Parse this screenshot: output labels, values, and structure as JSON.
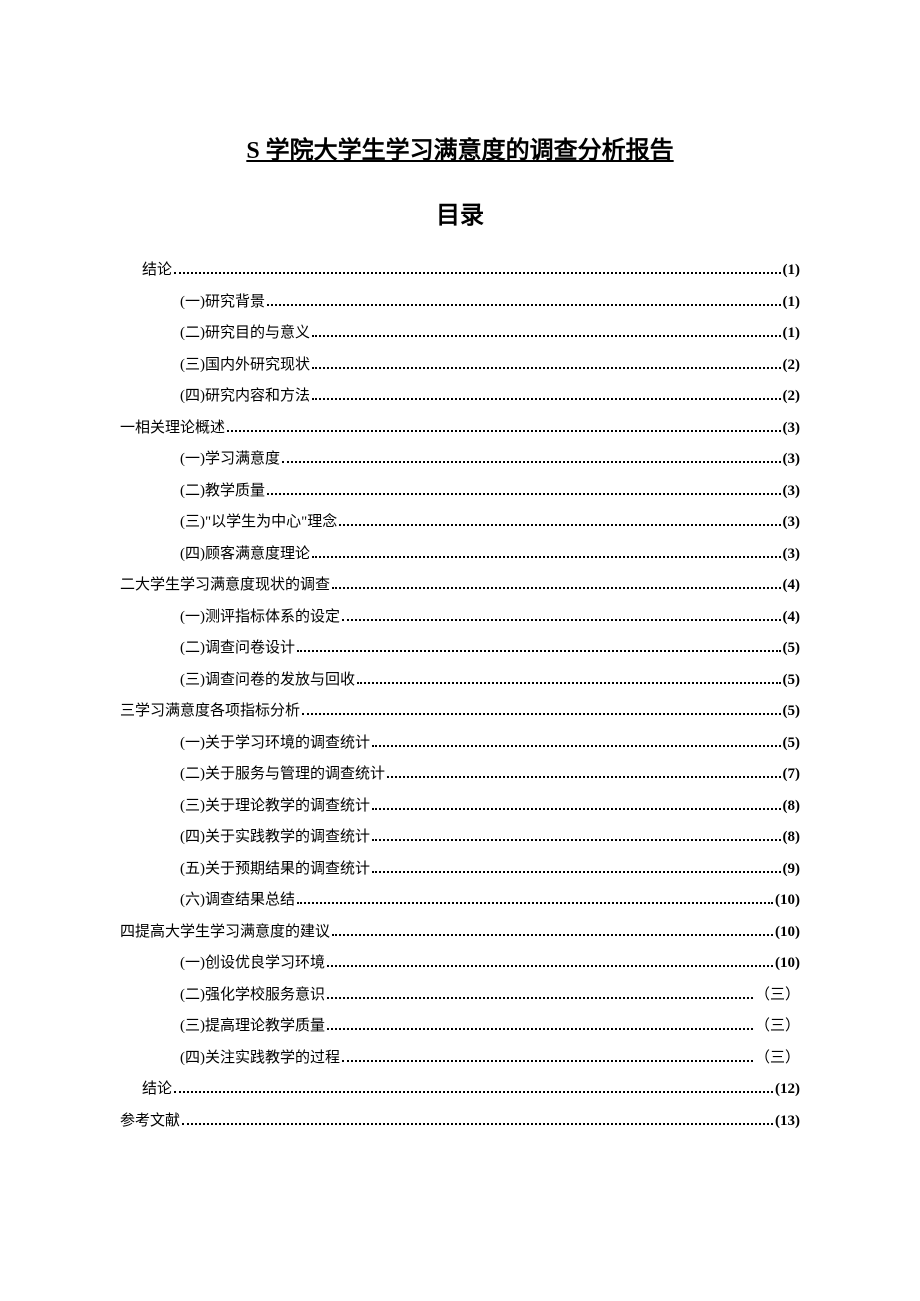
{
  "title": "S 学院大学生学习满意度的调查分析报告",
  "subtitle": "目录",
  "toc": [
    {
      "level": 1,
      "label": "结论",
      "page": "(1)"
    },
    {
      "level": 2,
      "label": "(一)研究背景",
      "page": "(1)"
    },
    {
      "level": 2,
      "label": "(二)研究目的与意义",
      "page": "(1)"
    },
    {
      "level": 2,
      "label": "(三)国内外研究现状",
      "page": "(2)"
    },
    {
      "level": 2,
      "label": "(四)研究内容和方法",
      "page": "(2)"
    },
    {
      "level": 0,
      "label": "一相关理论概述",
      "page": "(3)"
    },
    {
      "level": 2,
      "label": "(一)学习满意度",
      "page": "(3)"
    },
    {
      "level": 2,
      "label": "(二)教学质量",
      "page": "(3)"
    },
    {
      "level": 2,
      "label": "(三)\"以学生为中心\"理念",
      "page": "(3)"
    },
    {
      "level": 2,
      "label": "(四)顾客满意度理论",
      "page": "(3)"
    },
    {
      "level": 0,
      "label": "二大学生学习满意度现状的调查",
      "page": "(4)"
    },
    {
      "level": 2,
      "label": "(一)测评指标体系的设定",
      "page": "(4)"
    },
    {
      "level": 2,
      "label": "(二)调查问卷设计",
      "page": "(5)"
    },
    {
      "level": 2,
      "label": "(三)调查问卷的发放与回收",
      "page": "(5)"
    },
    {
      "level": 0,
      "label": "三学习满意度各项指标分析",
      "page": "(5)"
    },
    {
      "level": 2,
      "label": "(一)关于学习环境的调查统计",
      "page": "(5)"
    },
    {
      "level": 2,
      "label": "(二)关于服务与管理的调查统计",
      "page": "(7)"
    },
    {
      "level": 2,
      "label": "(三)关于理论教学的调查统计",
      "page": "(8)"
    },
    {
      "level": 2,
      "label": "(四)关于实践教学的调查统计",
      "page": "(8)"
    },
    {
      "level": 2,
      "label": "(五)关于预期结果的调查统计",
      "page": "(9)"
    },
    {
      "level": 2,
      "label": "(六)调查结果总结",
      "page": "(10)"
    },
    {
      "level": 0,
      "label": "四提高大学生学习满意度的建议",
      "page": "(10)"
    },
    {
      "level": 2,
      "label": "(一)创设优良学习环境",
      "page": "(10)"
    },
    {
      "level": 2,
      "label": "(二)强化学校服务意识",
      "page": "（三）",
      "paren": true
    },
    {
      "level": 2,
      "label": "(三)提高理论教学质量",
      "page": "（三）",
      "paren": true
    },
    {
      "level": 2,
      "label": "(四)关注实践教学的过程",
      "page": "（三）",
      "paren": true
    },
    {
      "level": 1,
      "label": "结论",
      "page": "(12)"
    },
    {
      "level": 0,
      "label": "参考文献",
      "page": "(13)"
    }
  ]
}
